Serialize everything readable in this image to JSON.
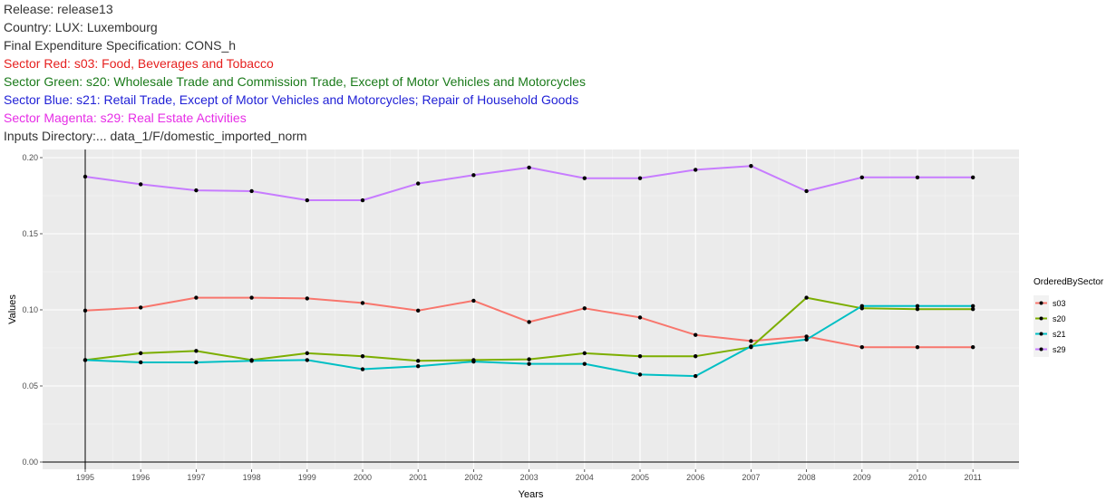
{
  "header": {
    "release": "Release: release13",
    "country": "Country: LUX: Luxembourg",
    "spec": "Final Expenditure Specification: CONS_h",
    "sector_red": "Sector Red: s03: Food, Beverages and Tobacco",
    "sector_green": "Sector Green: s20: Wholesale Trade and Commission Trade, Except of Motor Vehicles and Motorcycles",
    "sector_blue": "Sector Blue: s21: Retail Trade, Except of Motor Vehicles and Motorcycles; Repair of Household Goods",
    "sector_magenta": "Sector Magenta: s29: Real Estate Activities",
    "inputs": "Inputs Directory:... data_1/F/domestic_imported_norm"
  },
  "colors": {
    "red_text": "#e6201f",
    "green_text": "#1a7a1a",
    "blue_text": "#1f1fd6",
    "magenta_text": "#e62ee6",
    "gray_text": "#333333"
  },
  "chart_data": {
    "type": "line",
    "xlabel": "Years",
    "ylabel": "Values",
    "x": [
      "1995",
      "1996",
      "1997",
      "1998",
      "1999",
      "2000",
      "2001",
      "2002",
      "2003",
      "2004",
      "2005",
      "2006",
      "2007",
      "2008",
      "2009",
      "2010",
      "2011"
    ],
    "yticks": [
      "0.00",
      "0.05",
      "0.10",
      "0.15",
      "0.20"
    ],
    "ylim": [
      0,
      0.2
    ],
    "legend_title": "OrderedBySector",
    "legend_position": "right",
    "grid": true,
    "series": [
      {
        "name": "s03",
        "color": "#f8766d",
        "values": [
          0.0995,
          0.1015,
          0.108,
          0.108,
          0.1075,
          0.1045,
          0.0995,
          0.106,
          0.092,
          0.101,
          0.095,
          0.0835,
          0.0795,
          0.0825,
          0.0755,
          0.0755,
          0.0755
        ]
      },
      {
        "name": "s20",
        "color": "#7cae00",
        "values": [
          0.067,
          0.0715,
          0.073,
          0.067,
          0.0715,
          0.0695,
          0.0665,
          0.067,
          0.0675,
          0.0715,
          0.0695,
          0.0695,
          0.0755,
          0.108,
          0.101,
          0.1005,
          0.1005
        ]
      },
      {
        "name": "s21",
        "color": "#00bfc4",
        "values": [
          0.067,
          0.0655,
          0.0655,
          0.0665,
          0.067,
          0.061,
          0.063,
          0.066,
          0.0645,
          0.0645,
          0.0575,
          0.0565,
          0.076,
          0.0805,
          0.1025,
          0.1025,
          0.1025
        ]
      },
      {
        "name": "s29",
        "color": "#c77cff",
        "values": [
          0.1875,
          0.1825,
          0.1785,
          0.178,
          0.172,
          0.172,
          0.183,
          0.1885,
          0.1935,
          0.1865,
          0.1865,
          0.192,
          0.1945,
          0.178,
          0.187,
          0.187,
          0.187
        ]
      }
    ]
  }
}
